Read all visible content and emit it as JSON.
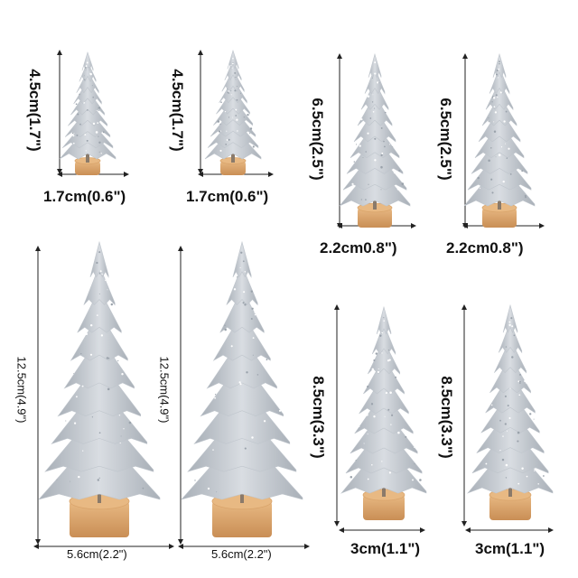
{
  "colors": {
    "background": "#ffffff",
    "tree_silver": "#d9dde2",
    "tree_shadow": "#a9b0b8",
    "wood_base": "#e8b983",
    "wood_dark": "#c98e55",
    "dimension_line": "#222222"
  },
  "products": [
    {
      "name": "tree-size-1",
      "height_label": "4.5cm(1.7\")",
      "width_label": "1.7cm(0.6\")"
    },
    {
      "name": "tree-size-2",
      "height_label": "4.5cm(1.7\")",
      "width_label": "1.7cm(0.6\")"
    },
    {
      "name": "tree-size-3",
      "height_label": "6.5cm(2.5\")",
      "width_label": "2.2cm0.8\")"
    },
    {
      "name": "tree-size-4",
      "height_label": "6.5cm(2.5\")",
      "width_label": "2.2cm0.8\")"
    },
    {
      "name": "tree-size-5",
      "height_label": "12.5cm(4.9\")",
      "width_label": "5.6cm(2.2\")"
    },
    {
      "name": "tree-size-6",
      "height_label": "12.5cm(4.9\")",
      "width_label": "5.6cm(2.2\")"
    },
    {
      "name": "tree-size-7",
      "height_label": "8.5cm(3.3\")",
      "width_label": "3cm(1.1\")"
    },
    {
      "name": "tree-size-8",
      "height_label": "8.5cm(3.3\")",
      "width_label": "3cm(1.1\")"
    }
  ]
}
